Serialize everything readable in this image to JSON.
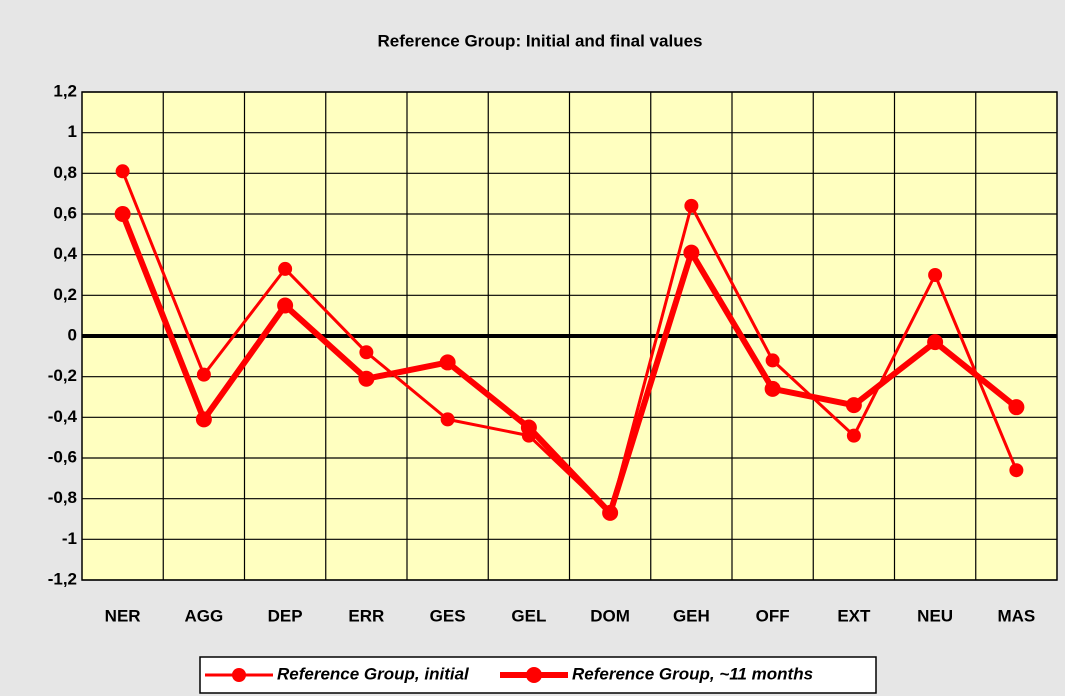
{
  "chart_data": {
    "type": "line",
    "title": "Reference Group: Initial and final values",
    "categories": [
      "NER",
      "AGG",
      "DEP",
      "ERR",
      "GES",
      "GEL",
      "DOM",
      "GEH",
      "OFF",
      "EXT",
      "NEU",
      "MAS"
    ],
    "series": [
      {
        "name": "Reference Group, initial",
        "color": "#ff0000",
        "values": [
          0.81,
          -0.19,
          0.33,
          -0.08,
          -0.41,
          -0.49,
          -0.87,
          0.64,
          -0.12,
          -0.49,
          0.3,
          -0.66
        ]
      },
      {
        "name": "Reference Group, ~11 months",
        "color": "#ff0000",
        "values": [
          0.6,
          -0.41,
          0.15,
          -0.21,
          -0.13,
          -0.45,
          -0.87,
          0.41,
          -0.26,
          -0.34,
          -0.03,
          -0.35
        ]
      }
    ],
    "ylim": [
      -1.2,
      1.2
    ],
    "yticks": [
      {
        "value": -1.2,
        "label": "-1,2"
      },
      -1,
      {
        "value": -0.8,
        "label": "-0,8"
      },
      {
        "value": -0.6,
        "label": "-0,6"
      },
      {
        "value": -0.4,
        "label": "-0,4"
      },
      {
        "value": -0.2,
        "label": "-0,2"
      },
      0,
      {
        "value": 0.2,
        "label": "0,2"
      },
      {
        "value": 0.4,
        "label": "0,4"
      },
      {
        "value": 0.6,
        "label": "0,6"
      },
      {
        "value": 0.8,
        "label": "0,8"
      },
      1,
      {
        "value": 1.2,
        "label": "1,2"
      }
    ],
    "grid": true,
    "legend": "bottom"
  }
}
